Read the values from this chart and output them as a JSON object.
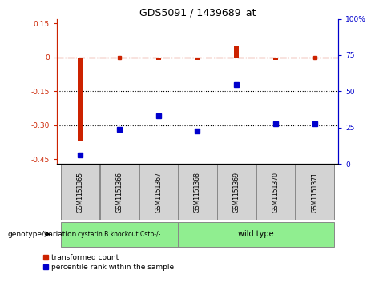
{
  "title": "GDS5091 / 1439689_at",
  "samples": [
    "GSM1151365",
    "GSM1151366",
    "GSM1151367",
    "GSM1151368",
    "GSM1151369",
    "GSM1151370",
    "GSM1151371"
  ],
  "x_positions": [
    0,
    1,
    2,
    3,
    4,
    5,
    6
  ],
  "red_values": [
    -0.37,
    0.0,
    -0.01,
    -0.01,
    0.05,
    -0.01,
    0.0
  ],
  "blue_values": [
    3,
    22,
    32,
    21,
    55,
    26,
    26
  ],
  "ylim_left": [
    -0.47,
    0.17
  ],
  "ylim_right": [
    0,
    100
  ],
  "yticks_left": [
    0.15,
    0.0,
    -0.15,
    -0.3,
    -0.45
  ],
  "yticks_right": [
    100,
    75,
    50,
    25,
    0
  ],
  "hlines": [
    -0.15,
    -0.3
  ],
  "dashed_line_y": 0.0,
  "group1_label": "cystatin B knockout Cstb-/-",
  "group2_label": "wild type",
  "group1_indices": [
    0,
    1,
    2
  ],
  "group2_indices": [
    3,
    4,
    5,
    6
  ],
  "group1_color": "#90ee90",
  "group2_color": "#90ee90",
  "box_color": "#d3d3d3",
  "legend_red_label": "transformed count",
  "legend_blue_label": "percentile rank within the sample",
  "red_color": "#cc2200",
  "blue_color": "#0000cc",
  "genotype_label": "genotype/variation"
}
